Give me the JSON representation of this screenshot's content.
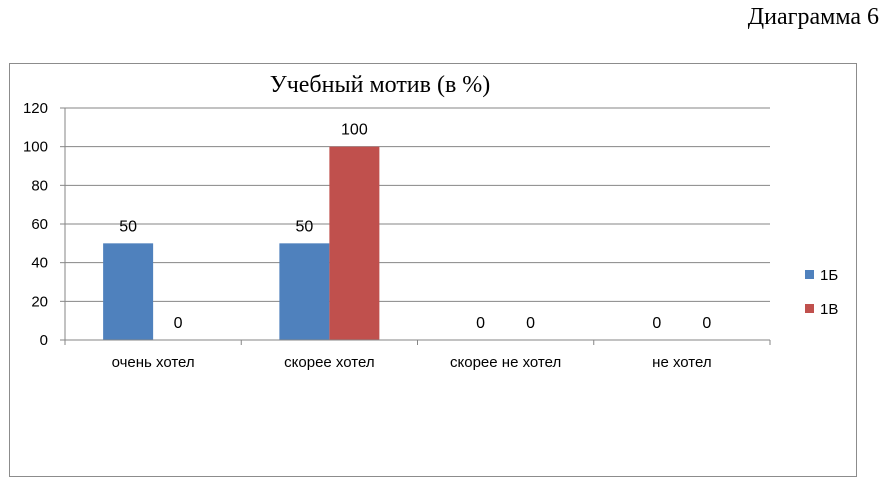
{
  "page": {
    "diagram_number": "Диаграмма 6"
  },
  "colors": {
    "series_1": "#4f81bd",
    "series_2": "#c0504d",
    "grid": "#868686",
    "axis": "#868686"
  },
  "chart_data": {
    "type": "bar",
    "title": "Учебный мотив (в %)",
    "xlabel": "",
    "ylabel": "",
    "categories": [
      "очень хотел",
      "скорее хотел",
      "скорее не хотел",
      "не хотел"
    ],
    "series": [
      {
        "name": "1Б",
        "values": [
          50,
          50,
          0,
          0
        ]
      },
      {
        "name": "1В",
        "values": [
          0,
          100,
          0,
          0
        ]
      }
    ],
    "ylim": [
      0,
      120
    ],
    "yticks": [
      0,
      20,
      40,
      60,
      80,
      100,
      120
    ],
    "grid": true,
    "data_labels": true,
    "legend_position": "right"
  }
}
